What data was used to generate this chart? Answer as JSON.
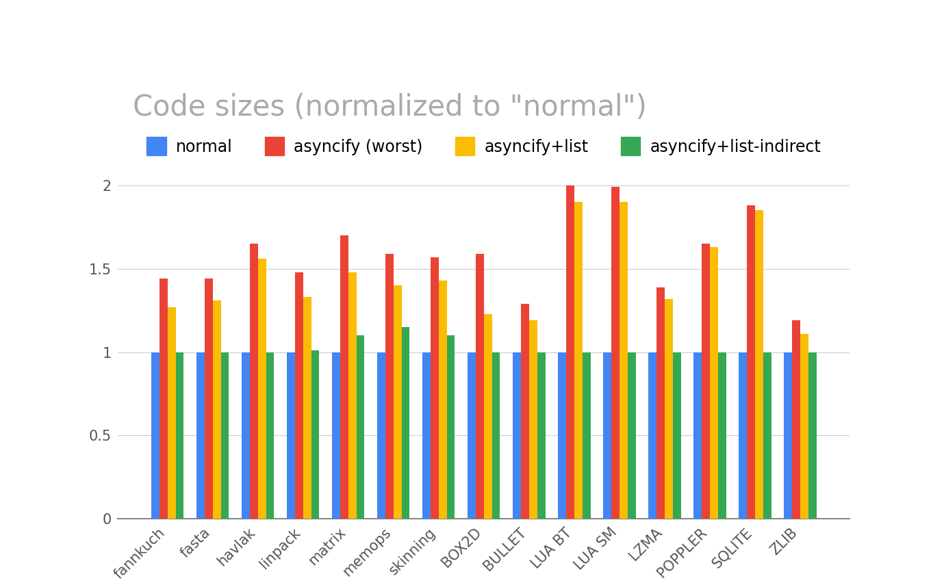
{
  "title": "Code sizes (normalized to \"normal\")",
  "categories": [
    "fannkuch",
    "fasta",
    "havlak",
    "linpack",
    "matrix",
    "memops",
    "skinning",
    "BOX2D",
    "BULLET",
    "LUA BT",
    "LUA SM",
    "LZMA",
    "POPPLER",
    "SQLITE",
    "ZLIB"
  ],
  "series": {
    "normal": [
      1.0,
      1.0,
      1.0,
      1.0,
      1.0,
      1.0,
      1.0,
      1.0,
      1.0,
      1.0,
      1.0,
      1.0,
      1.0,
      1.0,
      1.0
    ],
    "asyncify (worst)": [
      1.44,
      1.44,
      1.65,
      1.48,
      1.7,
      1.59,
      1.57,
      1.59,
      1.29,
      2.0,
      1.99,
      1.39,
      1.65,
      1.88,
      1.19
    ],
    "asyncify+list": [
      1.27,
      1.31,
      1.56,
      1.33,
      1.48,
      1.4,
      1.43,
      1.23,
      1.19,
      1.9,
      1.9,
      1.32,
      1.63,
      1.85,
      1.11
    ],
    "asyncify+list-indirect": [
      1.0,
      1.0,
      1.0,
      1.01,
      1.1,
      1.15,
      1.1,
      1.0,
      1.0,
      1.0,
      1.0,
      1.0,
      1.0,
      1.0,
      1.0
    ]
  },
  "colors": {
    "normal": "#4285F4",
    "asyncify (worst)": "#EA4335",
    "asyncify+list": "#FBBC04",
    "asyncify+list-indirect": "#34A853"
  },
  "ylim": [
    0,
    2.1
  ],
  "yticks": [
    0,
    0.5,
    1,
    1.5,
    2
  ],
  "background_color": "#ffffff",
  "grid_color": "#cccccc",
  "title_fontsize": 30,
  "tick_fontsize": 15,
  "legend_fontsize": 17,
  "title_color": "#aaaaaa",
  "tick_color": "#555555"
}
